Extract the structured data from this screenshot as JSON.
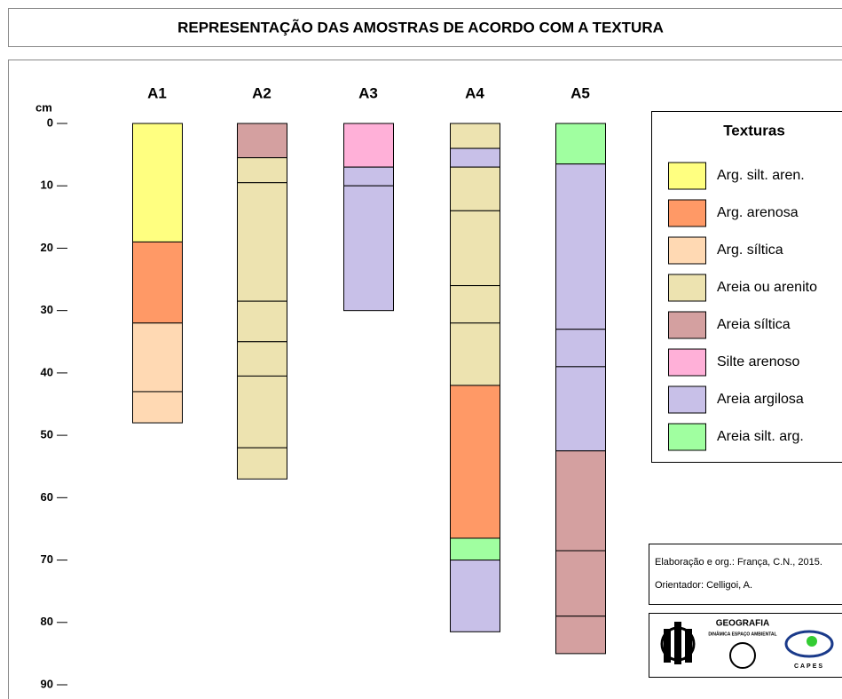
{
  "chart_data": {
    "type": "stratigraphic",
    "title": "REPRESENTAÇÃO DAS AMOSTRAS DE ACORDO COM A TEXTURA",
    "y_label": "cm",
    "ylim": [
      0,
      90
    ],
    "yticks": [
      0,
      10,
      20,
      30,
      40,
      50,
      60,
      70,
      80,
      90
    ],
    "legend_title": "Texturas",
    "textures": [
      {
        "name": "Arg. silt. aren.",
        "color": "#ffff80"
      },
      {
        "name": "Arg. arenosa",
        "color": "#ff9966"
      },
      {
        "name": "Arg. síltica",
        "color": "#ffd9b3"
      },
      {
        "name": "Areia ou arenito",
        "color": "#ede3b0"
      },
      {
        "name": "Areia síltica",
        "color": "#d4a0a0"
      },
      {
        "name": "Silte arenoso",
        "color": "#ffb0d8"
      },
      {
        "name": "Areia argilosa",
        "color": "#c8c0e8"
      },
      {
        "name": "Areia silt. arg.",
        "color": "#a0ffa0"
      }
    ],
    "columns": [
      {
        "name": "A1",
        "layers": [
          {
            "texture": 0,
            "value": 19
          },
          {
            "texture": 1,
            "value": 13
          },
          {
            "texture": 2,
            "value": 11
          },
          {
            "texture": 2,
            "value": 5
          }
        ]
      },
      {
        "name": "A2",
        "layers": [
          {
            "texture": 4,
            "value": 5.5
          },
          {
            "texture": 3,
            "value": 4
          },
          {
            "texture": 3,
            "value": 19
          },
          {
            "texture": 3,
            "value": 6.5
          },
          {
            "texture": 3,
            "value": 5.5
          },
          {
            "texture": 3,
            "value": 11.5
          },
          {
            "texture": 3,
            "value": 5
          }
        ]
      },
      {
        "name": "A3",
        "layers": [
          {
            "texture": 5,
            "value": 7
          },
          {
            "texture": 6,
            "value": 3
          },
          {
            "texture": 6,
            "value": 20
          }
        ]
      },
      {
        "name": "A4",
        "layers": [
          {
            "texture": 3,
            "value": 4
          },
          {
            "texture": 6,
            "value": 3
          },
          {
            "texture": 3,
            "value": 7
          },
          {
            "texture": 3,
            "value": 12
          },
          {
            "texture": 3,
            "value": 6
          },
          {
            "texture": 3,
            "value": 10
          },
          {
            "texture": 1,
            "value": 24.5
          },
          {
            "texture": 7,
            "value": 3.5
          },
          {
            "texture": 6,
            "value": 11.5
          }
        ]
      },
      {
        "name": "A5",
        "layers": [
          {
            "texture": 7,
            "value": 6.5
          },
          {
            "texture": 6,
            "value": 26.5
          },
          {
            "texture": 6,
            "value": 6
          },
          {
            "texture": 6,
            "value": 13.5
          },
          {
            "texture": 4,
            "value": 16
          },
          {
            "texture": 4,
            "value": 10.5
          },
          {
            "texture": 4,
            "value": 6
          }
        ]
      }
    ],
    "credits": [
      "Elaboração e org.: França, C.N., 2015.",
      "Orientador: Celligoi, A."
    ],
    "logos": [
      "GEOGRAFIA",
      "DINÂMICA ESPAÇO AMBIENTAL",
      "CAPES"
    ]
  }
}
